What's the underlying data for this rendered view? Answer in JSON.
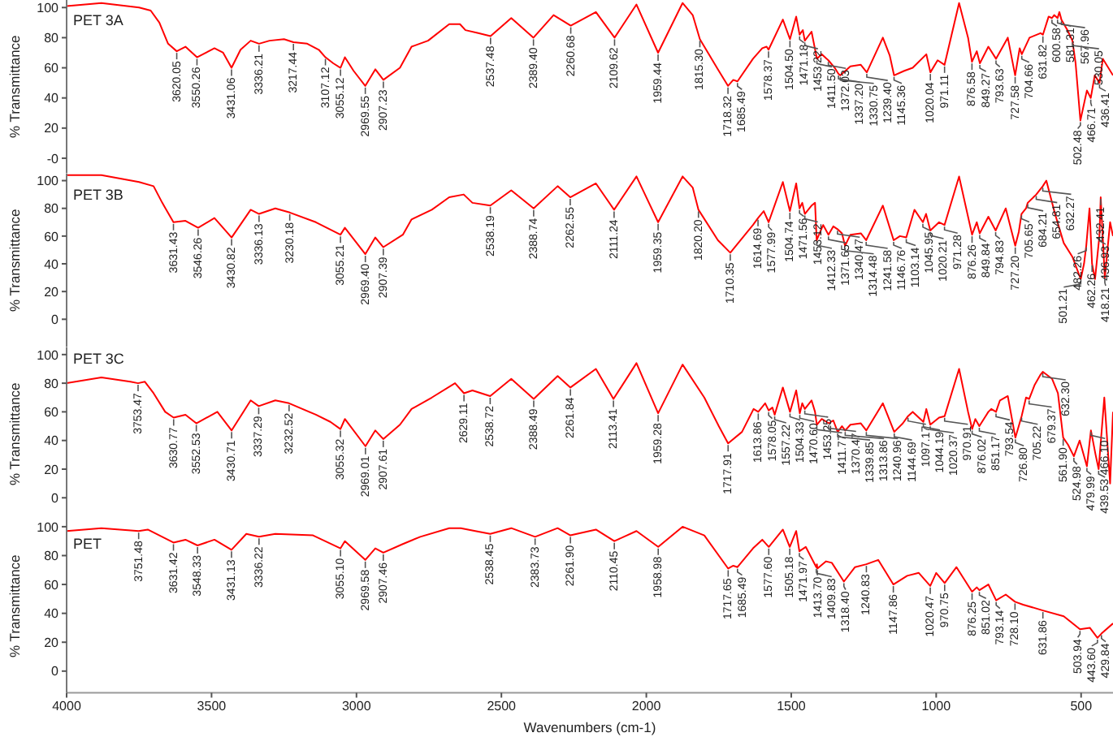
{
  "chart_data": [
    {
      "type": "line",
      "title": "PET 3A",
      "ylabel": "% Transmittance",
      "xlim": [
        4000,
        390
      ],
      "ylim": [
        -10,
        105
      ],
      "yticks": [
        {
          "value": 0,
          "label": "-0"
        },
        20,
        40,
        60,
        80,
        100
      ],
      "tick_labels": "y",
      "marker": "none",
      "line_style": "solid",
      "x": [
        4000,
        3880,
        3750,
        3710,
        3680,
        3650,
        3620.05,
        3590,
        3550.26,
        3490,
        3460,
        3431.06,
        3400,
        3365,
        3336.21,
        3300,
        3250,
        3217.44,
        3170,
        3130,
        3107.12,
        3080,
        3055.12,
        3040,
        3010,
        2969.55,
        2935,
        2907.23,
        2850,
        2810,
        2753,
        2680,
        2643,
        2624,
        2580,
        2537.48,
        2466,
        2389.4,
        2320,
        2260.68,
        2174,
        2109.62,
        2034,
        1959.44,
        1875,
        1840,
        1815.3,
        1753,
        1718.32,
        1700,
        1685.49,
        1632,
        1600,
        1585,
        1578.37,
        1529,
        1504.5,
        1483,
        1471.18,
        1460,
        1453.22,
        1430,
        1411.5,
        1395,
        1372.03,
        1350,
        1337.2,
        1330.75,
        1296,
        1260,
        1239.4,
        1184,
        1160,
        1145.36,
        1110,
        1081,
        1034,
        1020.04,
        995,
        971.11,
        921,
        890,
        876.58,
        860,
        849.27,
        820,
        793.63,
        753,
        727.58,
        712,
        704.66,
        678,
        640,
        631.82,
        612,
        600.58,
        593,
        581.31,
        575,
        567.96,
        547,
        530.05,
        519,
        502.48,
        480,
        466.71,
        453,
        436.41,
        425,
        390
      ],
      "series": [
        {
          "color": "#ff0000",
          "values": [
            101,
            103,
            100,
            98,
            90,
            76,
            71,
            74,
            67,
            73,
            70,
            60,
            72,
            78,
            76,
            78,
            79,
            77,
            76,
            72,
            67,
            63,
            60,
            67,
            58,
            48,
            59,
            52,
            60,
            74,
            78,
            89,
            89,
            85,
            83,
            81,
            93,
            80,
            95,
            88,
            97,
            80,
            102,
            70,
            103,
            95,
            79,
            59,
            48,
            52,
            51,
            66,
            73,
            74,
            72,
            92,
            79,
            94,
            82,
            85,
            78,
            84,
            66,
            69,
            65,
            60,
            56,
            55,
            61,
            62,
            57,
            80,
            68,
            55,
            58,
            60,
            69,
            57,
            65,
            62,
            103,
            80,
            64,
            71,
            63,
            74,
            66,
            80,
            55,
            73,
            69,
            80,
            83,
            82,
            94,
            93,
            95,
            93,
            97,
            92,
            85,
            78,
            63,
            25,
            45,
            40,
            55,
            50,
            66,
            55
          ]
        }
      ],
      "annotations": [
        {
          "text": "3620.05",
          "x": 3620.05,
          "y": 71
        },
        {
          "text": "3550.26",
          "x": 3550.26,
          "y": 67
        },
        {
          "text": "3431.06",
          "x": 3431.06,
          "y": 60
        },
        {
          "text": "3336.21",
          "x": 3336.21,
          "y": 76
        },
        {
          "text": "3217.44",
          "x": 3217.44,
          "y": 77
        },
        {
          "text": "3107.12",
          "x": 3107.12,
          "y": 67
        },
        {
          "text": "3055.12",
          "x": 3055.12,
          "y": 60
        },
        {
          "text": "2969.55",
          "x": 2969.55,
          "y": 48
        },
        {
          "text": "2907.23",
          "x": 2907.23,
          "y": 52
        },
        {
          "text": "2537.48",
          "x": 2537.48,
          "y": 81
        },
        {
          "text": "2389.40",
          "x": 2389.4,
          "y": 80
        },
        {
          "text": "2260.68",
          "x": 2260.68,
          "y": 88
        },
        {
          "text": "2109.62",
          "x": 2109.62,
          "y": 80
        },
        {
          "text": "1959.44",
          "x": 1959.44,
          "y": 70
        },
        {
          "text": "1815.30",
          "x": 1815.3,
          "y": 79
        },
        {
          "text": "1718.32",
          "x": 1718.32,
          "y": 48
        },
        {
          "text": "1685.49",
          "x": 1685.49,
          "y": 51
        },
        {
          "text": "1578.37",
          "x": 1578.37,
          "y": 72
        },
        {
          "text": "1504.50",
          "x": 1504.5,
          "y": 79
        },
        {
          "text": "1471.18",
          "x": 1471.18,
          "y": 82
        },
        {
          "text": "1453.22",
          "x": 1453.22,
          "y": 78
        },
        {
          "text": "1411.50",
          "x": 1411.5,
          "y": 66
        },
        {
          "text": "1372.03",
          "x": 1372.03,
          "y": 65
        },
        {
          "text": "1337.20",
          "x": 1337.2,
          "y": 56
        },
        {
          "text": "1330.75",
          "x": 1330.75,
          "y": 55
        },
        {
          "text": "1239.40",
          "x": 1239.4,
          "y": 57
        },
        {
          "text": "1145.36",
          "x": 1145.36,
          "y": 55
        },
        {
          "text": "1020.04",
          "x": 1020.04,
          "y": 57
        },
        {
          "text": "971.11",
          "x": 971.11,
          "y": 62
        },
        {
          "text": "876.58",
          "x": 876.58,
          "y": 64
        },
        {
          "text": "849.27",
          "x": 849.27,
          "y": 63
        },
        {
          "text": "793.63",
          "x": 793.63,
          "y": 66
        },
        {
          "text": "727.58",
          "x": 727.58,
          "y": 55
        },
        {
          "text": "704.66",
          "x": 704.66,
          "y": 69
        },
        {
          "text": "631.82",
          "x": 631.82,
          "y": 82
        },
        {
          "text": "600.58",
          "x": 600.58,
          "y": 93
        },
        {
          "text": "581.31",
          "x": 581.31,
          "y": 93
        },
        {
          "text": "567.96",
          "x": 567.96,
          "y": 92
        },
        {
          "text": "530.05",
          "x": 530.05,
          "y": 78
        },
        {
          "text": "502.48",
          "x": 502.48,
          "y": 25
        },
        {
          "text": "466.71",
          "x": 466.71,
          "y": 40
        },
        {
          "text": "436.41",
          "x": 436.41,
          "y": 50
        }
      ]
    },
    {
      "type": "line",
      "title": "PET 3B",
      "ylabel": "% Transmittance",
      "xlim": [
        4000,
        390
      ],
      "ylim": [
        -20,
        105
      ],
      "yticks": [
        0,
        20,
        40,
        60,
        80,
        100
      ],
      "tick_labels": "y",
      "marker": "none",
      "line_style": "solid",
      "x": [
        4000,
        3880,
        3750,
        3700,
        3670,
        3631.43,
        3590,
        3546.26,
        3490,
        3430.82,
        3365,
        3336.13,
        3280,
        3230.18,
        3140,
        3055.21,
        3040,
        2969.4,
        2935,
        2907.39,
        2840,
        2810,
        2740,
        2680,
        2630,
        2600,
        2538.19,
        2466,
        2388.74,
        2306,
        2262.55,
        2174,
        2111.24,
        2034,
        1959.35,
        1875,
        1840,
        1820.2,
        1753,
        1710.35,
        1632,
        1614.69,
        1595,
        1577.99,
        1529,
        1504.74,
        1483,
        1471.56,
        1462,
        1453.12,
        1430,
        1418,
        1412.33,
        1390,
        1371.65,
        1355,
        1340.47,
        1325,
        1314.48,
        1296,
        1260,
        1241.58,
        1184,
        1146.76,
        1125,
        1103.14,
        1075,
        1045.95,
        1035,
        1020.21,
        990,
        971.28,
        921,
        876.26,
        860,
        849.84,
        820,
        794.83,
        760,
        727.2,
        715,
        705.65,
        690,
        684.21,
        654.81,
        632.27,
        620,
        590,
        560,
        530,
        501.21,
        490,
        482.26,
        471,
        462.26,
        452,
        436.93,
        432.41,
        418.21,
        400,
        390
      ],
      "series": [
        {
          "color": "#ff0000",
          "values": [
            104,
            104,
            99,
            96,
            84,
            70,
            71,
            66,
            73,
            59,
            79,
            76,
            80,
            77,
            70,
            61,
            66,
            47,
            59,
            52,
            61,
            72,
            79,
            88,
            90,
            84,
            82,
            93,
            80,
            96,
            88,
            98,
            79,
            103,
            70,
            103,
            95,
            79,
            57,
            48,
            68,
            73,
            78,
            70,
            99,
            78,
            98,
            80,
            84,
            76,
            82,
            84,
            57,
            68,
            61,
            67,
            65,
            62,
            53,
            61,
            62,
            57,
            82,
            57,
            60,
            59,
            79,
            70,
            76,
            64,
            70,
            68,
            103,
            61,
            70,
            62,
            74,
            64,
            80,
            53,
            63,
            76,
            80,
            84,
            90,
            96,
            100,
            76,
            55,
            45,
            29,
            40,
            53,
            80,
            40,
            29,
            60,
            88,
            30,
            70,
            60
          ]
        }
      ],
      "annotations": [
        {
          "text": "3631.43",
          "x": 3631.43,
          "y": 70
        },
        {
          "text": "3546.26",
          "x": 3546.26,
          "y": 66
        },
        {
          "text": "3430.82",
          "x": 3430.82,
          "y": 59
        },
        {
          "text": "3336.13",
          "x": 3336.13,
          "y": 76
        },
        {
          "text": "3230.18",
          "x": 3230.18,
          "y": 77
        },
        {
          "text": "3055.21",
          "x": 3055.21,
          "y": 61
        },
        {
          "text": "2969.40",
          "x": 2969.4,
          "y": 47
        },
        {
          "text": "2907.39",
          "x": 2907.39,
          "y": 52
        },
        {
          "text": "2538.19",
          "x": 2538.19,
          "y": 82
        },
        {
          "text": "2388.74",
          "x": 2388.74,
          "y": 80
        },
        {
          "text": "2262.55",
          "x": 2262.55,
          "y": 88
        },
        {
          "text": "2111.24",
          "x": 2111.24,
          "y": 79
        },
        {
          "text": "1959.35",
          "x": 1959.35,
          "y": 70
        },
        {
          "text": "1820.20",
          "x": 1820.2,
          "y": 79
        },
        {
          "text": "1710.35",
          "x": 1710.35,
          "y": 48
        },
        {
          "text": "1614.69",
          "x": 1614.69,
          "y": 73
        },
        {
          "text": "1577.99",
          "x": 1577.99,
          "y": 70
        },
        {
          "text": "1504.74",
          "x": 1504.74,
          "y": 78
        },
        {
          "text": "1471.56",
          "x": 1471.56,
          "y": 80
        },
        {
          "text": "1453.12",
          "x": 1453.12,
          "y": 76
        },
        {
          "text": "1412.33",
          "x": 1412.33,
          "y": 57
        },
        {
          "text": "1371.65",
          "x": 1371.65,
          "y": 61
        },
        {
          "text": "1340.47",
          "x": 1340.47,
          "y": 65
        },
        {
          "text": "1314.48",
          "x": 1314.48,
          "y": 53
        },
        {
          "text": "1241.58",
          "x": 1241.58,
          "y": 57
        },
        {
          "text": "1146.76",
          "x": 1146.76,
          "y": 57
        },
        {
          "text": "1103.14",
          "x": 1103.14,
          "y": 59
        },
        {
          "text": "1045.95",
          "x": 1045.95,
          "y": 70
        },
        {
          "text": "1020.21",
          "x": 1020.21,
          "y": 64
        },
        {
          "text": "971.28",
          "x": 971.28,
          "y": 68
        },
        {
          "text": "876.26",
          "x": 876.26,
          "y": 61
        },
        {
          "text": "849.84",
          "x": 849.84,
          "y": 62
        },
        {
          "text": "794.83",
          "x": 794.83,
          "y": 64
        },
        {
          "text": "727.20",
          "x": 727.2,
          "y": 53
        },
        {
          "text": "705.65",
          "x": 705.65,
          "y": 76
        },
        {
          "text": "684.21",
          "x": 684.21,
          "y": 84
        },
        {
          "text": "654.81",
          "x": 654.81,
          "y": 90
        },
        {
          "text": "632.27",
          "x": 632.27,
          "y": 96
        },
        {
          "text": "501.21",
          "x": 501.21,
          "y": 29
        },
        {
          "text": "482.26",
          "x": 482.26,
          "y": 53
        },
        {
          "text": "462.26",
          "x": 462.26,
          "y": 40
        },
        {
          "text": "436.93",
          "x": 436.93,
          "y": 60
        },
        {
          "text": "432.41",
          "x": 432.41,
          "y": 88
        },
        {
          "text": "418.21",
          "x": 418.21,
          "y": 30
        }
      ]
    },
    {
      "type": "line",
      "title": "PET 3C",
      "ylabel": "% Transmittance",
      "xlim": [
        4000,
        390
      ],
      "ylim": [
        -16,
        105
      ],
      "yticks": [
        0,
        20,
        40,
        60,
        80,
        100
      ],
      "tick_labels": "y",
      "marker": "none",
      "line_style": "solid",
      "x": [
        4000,
        3880,
        3780,
        3753.47,
        3730,
        3700,
        3660,
        3630.77,
        3590,
        3552.53,
        3480,
        3430.71,
        3365,
        3337.29,
        3280,
        3232.52,
        3140,
        3090,
        3055.32,
        3040,
        2969.01,
        2935,
        2907.61,
        2850,
        2810,
        2740,
        2660,
        2629.11,
        2600,
        2538.72,
        2466,
        2388.49,
        2306,
        2261.84,
        2174,
        2113.41,
        2034,
        1959.28,
        1875,
        1800,
        1750,
        1717.91,
        1670,
        1630,
        1613.86,
        1590,
        1578.05,
        1565,
        1557.22,
        1529,
        1504.33,
        1483,
        1470.6,
        1462,
        1453.25,
        1430,
        1418,
        1411.77,
        1395,
        1370.47,
        1355,
        1339.85,
        1325,
        1313.86,
        1296,
        1260,
        1240.96,
        1184,
        1144.69,
        1115,
        1097.17,
        1081,
        1044.19,
        1034,
        1020.37,
        990,
        970.91,
        921,
        890,
        876.02,
        865,
        851.17,
        820,
        810,
        793.54,
        780,
        753,
        726.8,
        705.22,
        690,
        679.37,
        660,
        640,
        632.3,
        600,
        580,
        561.9,
        545,
        524.98,
        505,
        479.99,
        466.1,
        450,
        439.53,
        420,
        400,
        390
      ],
      "series": [
        {
          "color": "#ff0000",
          "values": [
            80,
            84,
            81,
            80,
            81,
            73,
            60,
            56,
            58,
            52,
            60,
            47,
            68,
            64,
            68,
            66,
            58,
            53,
            48,
            55,
            36,
            47,
            41,
            51,
            62,
            70,
            80,
            73,
            75,
            71,
            83,
            69,
            85,
            77,
            90,
            69,
            94,
            59,
            93,
            70,
            50,
            38,
            46,
            62,
            60,
            66,
            61,
            63,
            58,
            77,
            60,
            75,
            59,
            66,
            62,
            68,
            60,
            51,
            55,
            52,
            54,
            46,
            50,
            47,
            51,
            52,
            47,
            66,
            46,
            52,
            57,
            60,
            53,
            62,
            51,
            56,
            57,
            90,
            60,
            48,
            55,
            50,
            60,
            62,
            60,
            68,
            71,
            42,
            57,
            70,
            69,
            79,
            86,
            88,
            83,
            73,
            42,
            37,
            29,
            40,
            22,
            47,
            30,
            20,
            70,
            10,
            60
          ]
        }
      ],
      "annotations": [
        {
          "text": "3753.47",
          "x": 3753.47,
          "y": 80
        },
        {
          "text": "3630.77",
          "x": 3630.77,
          "y": 56
        },
        {
          "text": "3552.53",
          "x": 3552.53,
          "y": 52
        },
        {
          "text": "3430.71",
          "x": 3430.71,
          "y": 47
        },
        {
          "text": "3337.29",
          "x": 3337.29,
          "y": 64
        },
        {
          "text": "3232.52",
          "x": 3232.52,
          "y": 66
        },
        {
          "text": "3055.32",
          "x": 3055.32,
          "y": 48
        },
        {
          "text": "2969.01",
          "x": 2969.01,
          "y": 36
        },
        {
          "text": "2907.61",
          "x": 2907.61,
          "y": 41
        },
        {
          "text": "2629.11",
          "x": 2629.11,
          "y": 73
        },
        {
          "text": "2538.72",
          "x": 2538.72,
          "y": 71
        },
        {
          "text": "2388.49",
          "x": 2388.49,
          "y": 69
        },
        {
          "text": "2261.84",
          "x": 2261.84,
          "y": 77
        },
        {
          "text": "2113.41",
          "x": 2113.41,
          "y": 69
        },
        {
          "text": "1959.28",
          "x": 1959.28,
          "y": 59
        },
        {
          "text": "1717.91",
          "x": 1717.91,
          "y": 38
        },
        {
          "text": "1613.86",
          "x": 1613.86,
          "y": 60
        },
        {
          "text": "1578.05",
          "x": 1578.05,
          "y": 61
        },
        {
          "text": "1557.22",
          "x": 1557.22,
          "y": 58
        },
        {
          "text": "1504.33",
          "x": 1504.33,
          "y": 60
        },
        {
          "text": "1470.60",
          "x": 1470.6,
          "y": 59
        },
        {
          "text": "1453.25",
          "x": 1453.25,
          "y": 62
        },
        {
          "text": "1411.77",
          "x": 1411.77,
          "y": 51
        },
        {
          "text": "1370.47",
          "x": 1370.47,
          "y": 52
        },
        {
          "text": "1339.85",
          "x": 1339.85,
          "y": 46
        },
        {
          "text": "1313.86",
          "x": 1313.86,
          "y": 47
        },
        {
          "text": "1240.96",
          "x": 1240.96,
          "y": 47
        },
        {
          "text": "1144.69",
          "x": 1144.69,
          "y": 46
        },
        {
          "text": "1097.17",
          "x": 1097.17,
          "y": 57
        },
        {
          "text": "1044.19",
          "x": 1044.19,
          "y": 53
        },
        {
          "text": "1020.37",
          "x": 1020.37,
          "y": 51
        },
        {
          "text": "970.91",
          "x": 970.91,
          "y": 57
        },
        {
          "text": "876.02",
          "x": 876.02,
          "y": 48
        },
        {
          "text": "851.17",
          "x": 851.17,
          "y": 50
        },
        {
          "text": "793.54",
          "x": 793.54,
          "y": 60
        },
        {
          "text": "726.80",
          "x": 726.8,
          "y": 42
        },
        {
          "text": "705.22",
          "x": 705.22,
          "y": 57
        },
        {
          "text": "679.37",
          "x": 679.37,
          "y": 69
        },
        {
          "text": "632.30",
          "x": 632.3,
          "y": 88
        },
        {
          "text": "561.90",
          "x": 561.9,
          "y": 42
        },
        {
          "text": "524.98",
          "x": 524.98,
          "y": 29
        },
        {
          "text": "479.99",
          "x": 479.99,
          "y": 22
        },
        {
          "text": "466.10",
          "x": 466.1,
          "y": 47
        },
        {
          "text": "439.53",
          "x": 439.53,
          "y": 20
        }
      ]
    },
    {
      "type": "line",
      "title": "PET",
      "ylabel": "% Transmittance",
      "xlabel": "Wavenumbers (cm-1)",
      "xlim": [
        4000,
        390
      ],
      "xticks": [
        4000,
        3500,
        3000,
        2500,
        2000,
        1500,
        1000,
        500
      ],
      "ylim": [
        -15,
        105
      ],
      "yticks": [
        0,
        20,
        40,
        60,
        80,
        100
      ],
      "marker": "none",
      "line_style": "solid",
      "x": [
        4000,
        3880,
        3751.48,
        3720,
        3680,
        3631.42,
        3590,
        3548.33,
        3490,
        3431.13,
        3380,
        3336.22,
        3280,
        3150,
        3055.1,
        3040,
        2969.58,
        2935,
        2907.46,
        2840,
        2780,
        2680,
        2640,
        2590,
        2538.45,
        2466,
        2383.73,
        2306,
        2261.9,
        2174,
        2110.45,
        2034,
        1958.98,
        1875,
        1800,
        1717.65,
        1700,
        1685.49,
        1632,
        1600,
        1577.6,
        1529,
        1505.18,
        1483,
        1471.97,
        1450,
        1413.7,
        1411.5,
        1409.83,
        1380,
        1360,
        1318.4,
        1280,
        1240.83,
        1200,
        1147.86,
        1100,
        1060,
        1020.47,
        1000,
        970.75,
        930,
        876.25,
        860,
        851.02,
        820,
        793.14,
        760,
        728.1,
        700,
        631.86,
        560,
        503.94,
        470,
        443.6,
        429.84,
        390
      ],
      "series": [
        {
          "color": "#ff0000",
          "values": [
            97,
            99,
            97,
            98,
            94,
            89,
            91,
            87,
            91,
            84,
            95,
            93,
            95,
            94,
            85,
            90,
            77,
            85,
            82,
            88,
            93,
            99,
            99,
            97,
            95,
            99,
            93,
            99,
            94,
            98,
            90,
            97,
            86,
            100,
            94,
            71,
            73,
            72,
            85,
            91,
            86,
            98,
            86,
            97,
            83,
            86,
            72,
            74,
            71,
            76,
            75,
            62,
            72,
            74,
            77,
            60,
            66,
            68,
            59,
            68,
            61,
            72,
            55,
            58,
            56,
            60,
            49,
            53,
            48,
            46,
            42,
            38,
            29,
            30,
            23,
            26,
            33
          ]
        }
      ],
      "annotations": [
        {
          "text": "3751.48",
          "x": 3751.48,
          "y": 97
        },
        {
          "text": "3631.42",
          "x": 3631.42,
          "y": 89
        },
        {
          "text": "3548.33",
          "x": 3548.33,
          "y": 87
        },
        {
          "text": "3431.13",
          "x": 3431.13,
          "y": 84
        },
        {
          "text": "3336.22",
          "x": 3336.22,
          "y": 93
        },
        {
          "text": "3055.10",
          "x": 3055.1,
          "y": 85
        },
        {
          "text": "2969.58",
          "x": 2969.58,
          "y": 77
        },
        {
          "text": "2907.46",
          "x": 2907.46,
          "y": 82
        },
        {
          "text": "2538.45",
          "x": 2538.45,
          "y": 95
        },
        {
          "text": "2383.73",
          "x": 2383.73,
          "y": 93
        },
        {
          "text": "2261.90",
          "x": 2261.9,
          "y": 94
        },
        {
          "text": "2110.45",
          "x": 2110.45,
          "y": 90
        },
        {
          "text": "1958.98",
          "x": 1958.98,
          "y": 86
        },
        {
          "text": "1717.65",
          "x": 1717.65,
          "y": 71
        },
        {
          "text": "1685.49",
          "x": 1685.49,
          "y": 72
        },
        {
          "text": "1577.60",
          "x": 1577.6,
          "y": 86
        },
        {
          "text": "1505.18",
          "x": 1505.18,
          "y": 86
        },
        {
          "text": "1471.97",
          "x": 1471.97,
          "y": 83
        },
        {
          "text": "1413.70",
          "x": 1413.7,
          "y": 72
        },
        {
          "text": "1409.83",
          "x": 1409.83,
          "y": 71
        },
        {
          "text": "1318.40",
          "x": 1318.4,
          "y": 62
        },
        {
          "text": "1240.83",
          "x": 1240.83,
          "y": 74
        },
        {
          "text": "1147.86",
          "x": 1147.86,
          "y": 60
        },
        {
          "text": "1020.47",
          "x": 1020.47,
          "y": 59
        },
        {
          "text": "970.75",
          "x": 970.75,
          "y": 61
        },
        {
          "text": "876.25",
          "x": 876.25,
          "y": 55
        },
        {
          "text": "851.02",
          "x": 851.02,
          "y": 56
        },
        {
          "text": "793.14",
          "x": 793.14,
          "y": 49
        },
        {
          "text": "728.10",
          "x": 728.1,
          "y": 48
        },
        {
          "text": "631.86",
          "x": 631.86,
          "y": 42
        },
        {
          "text": "503.94",
          "x": 503.94,
          "y": 29
        },
        {
          "text": "443.60",
          "x": 443.6,
          "y": 23
        },
        {
          "text": "429.84",
          "x": 429.84,
          "y": 26
        }
      ]
    }
  ]
}
